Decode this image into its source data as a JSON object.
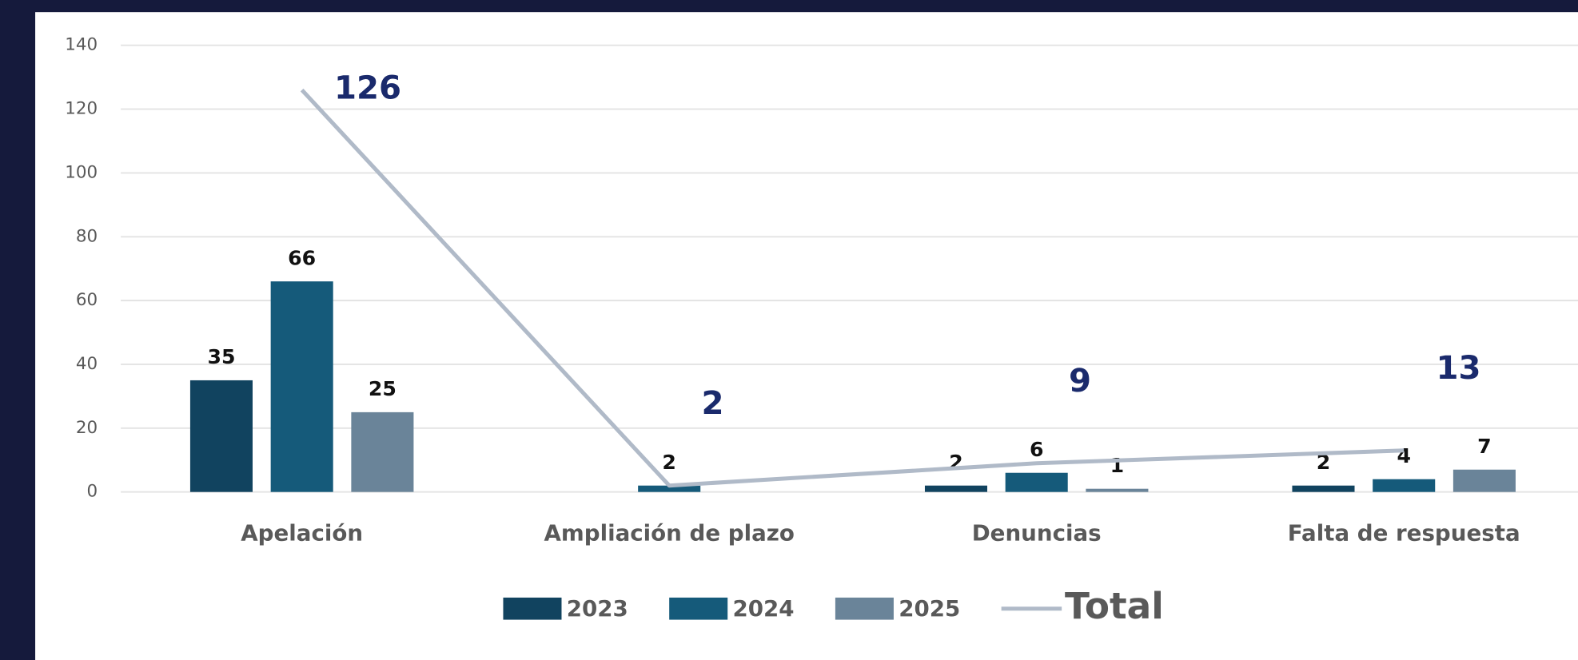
{
  "chart_data": {
    "type": "bar",
    "categories": [
      "Apelación",
      "Ampliación de plazo",
      "Denuncias",
      "Falta de respuesta"
    ],
    "series": [
      {
        "name": "2023",
        "color": "#11435f",
        "values": [
          35,
          null,
          2,
          2
        ]
      },
      {
        "name": "2024",
        "color": "#155a7a",
        "values": [
          66,
          2,
          6,
          4
        ]
      },
      {
        "name": "2025",
        "color": "#6a8499",
        "values": [
          25,
          null,
          1,
          7
        ]
      },
      {
        "name": "Total",
        "type": "line",
        "color": "#b0bac8",
        "values": [
          126,
          2,
          9,
          13
        ]
      }
    ],
    "ylim": [
      0,
      140
    ],
    "yticks": [
      0,
      20,
      40,
      60,
      80,
      100,
      120,
      140
    ],
    "grid": true,
    "legend": "bottom"
  }
}
